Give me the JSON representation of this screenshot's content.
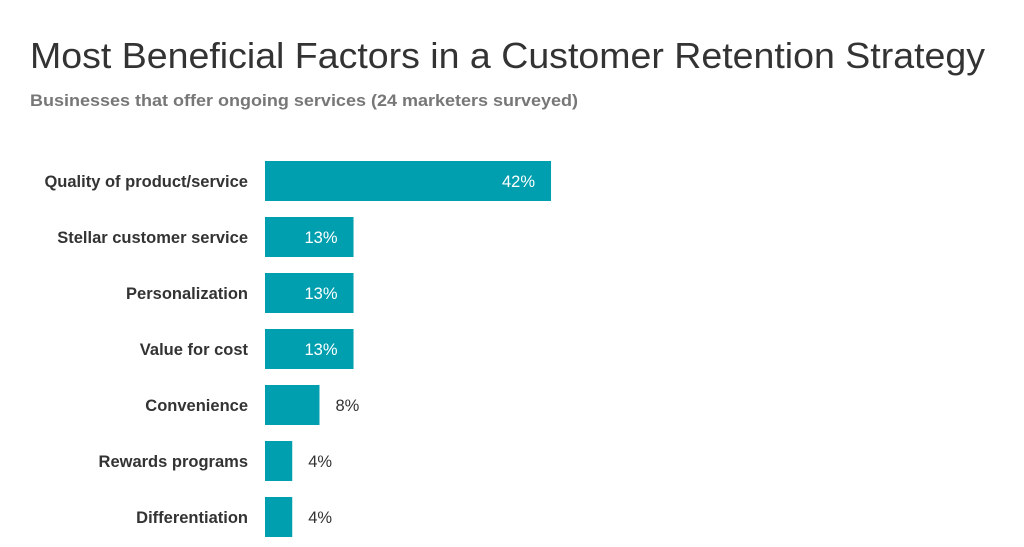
{
  "chart_data": {
    "type": "bar",
    "orientation": "horizontal",
    "title": "Most Beneficial Factors in a Customer Retention Strategy",
    "subtitle": "Businesses that offer ongoing services (24 marketers surveyed)",
    "categories": [
      "Quality of product/service",
      "Stellar customer service",
      "Personalization",
      "Value for cost",
      "Convenience",
      "Rewards programs",
      "Differentiation"
    ],
    "values": [
      42,
      13,
      13,
      13,
      8,
      4,
      4
    ],
    "value_labels": [
      "42%",
      "13%",
      "13%",
      "13%",
      "8%",
      "4%",
      "4%"
    ],
    "unit": "%",
    "xlim": [
      0,
      50
    ],
    "grid": false,
    "bar_color": "#009faf",
    "label_inside_color": "#ffffff",
    "label_outside_color": "#333333"
  }
}
